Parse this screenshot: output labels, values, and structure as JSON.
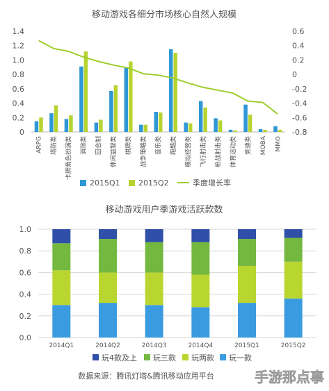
{
  "chart_data": [
    {
      "type": "bar",
      "title": "移动游戏各细分市场核心自然人规模",
      "categories": [
        "ARPG",
        "塔防类",
        "卡牌角色扮演类",
        "消除类",
        "回合制",
        "休闲益智类",
        "棋牌类",
        "战争策略类",
        "音乐类",
        "跑酷类",
        "模拟经营类",
        "飞行射击类",
        "枪战射击类",
        "体育运动类",
        "竞速类",
        "MOBA",
        "MMO"
      ],
      "series": [
        {
          "name": "2015Q1",
          "color": "#2f97d6",
          "axis": "left",
          "values": [
            0.15,
            0.26,
            0.18,
            0.91,
            0.13,
            0.57,
            0.89,
            0.1,
            0.28,
            1.15,
            0.13,
            0.43,
            0.19,
            0.03,
            0.38,
            0.04,
            0.08
          ]
        },
        {
          "name": "2015Q2",
          "color": "#b6d431",
          "axis": "left",
          "values": [
            0.2,
            0.37,
            0.23,
            1.12,
            0.17,
            0.65,
            0.98,
            0.1,
            0.27,
            1.1,
            0.12,
            0.34,
            0.16,
            0.02,
            0.24,
            0.03,
            0.03
          ]
        },
        {
          "name": "季度增长率",
          "color": "#9bcd2a",
          "axis": "right",
          "kind": "line",
          "values": [
            0.47,
            0.36,
            0.32,
            0.24,
            0.18,
            0.13,
            0.09,
            0.01,
            -0.01,
            -0.05,
            -0.12,
            -0.18,
            -0.22,
            -0.26,
            -0.37,
            -0.39,
            -0.55
          ]
        }
      ],
      "ylim": [
        0,
        1.4
      ],
      "yticks": [
        "0",
        "0.2",
        "0.4",
        "0.6",
        "0.8",
        "1.0",
        "1.2",
        "1.4"
      ],
      "y2lim": [
        -0.8,
        0.6
      ],
      "y2ticks": [
        "-0.8",
        "-0.6",
        "-0.4",
        "-0.2",
        "0",
        "0.2",
        "0.4",
        "0.6"
      ],
      "legend_position": "bottom",
      "grid": false
    },
    {
      "type": "bar",
      "stacked": true,
      "title": "移动游戏用户季游戏活跃款数",
      "categories": [
        "2014Q1",
        "2014Q2",
        "2014Q3",
        "2014Q4",
        "2015Q1",
        "2015Q2"
      ],
      "series": [
        {
          "name": "玩一款",
          "color": "#3b9be0",
          "values": [
            0.3,
            0.32,
            0.3,
            0.28,
            0.32,
            0.36
          ]
        },
        {
          "name": "玩两款",
          "color": "#b9d530",
          "values": [
            0.32,
            0.28,
            0.3,
            0.3,
            0.34,
            0.34
          ]
        },
        {
          "name": "玩三款",
          "color": "#74b83f",
          "values": [
            0.25,
            0.31,
            0.28,
            0.3,
            0.25,
            0.22
          ]
        },
        {
          "name": "玩4款及上",
          "color": "#2f4fa8",
          "values": [
            0.13,
            0.09,
            0.12,
            0.12,
            0.09,
            0.08
          ]
        }
      ],
      "ylim": [
        0,
        1.0
      ],
      "yticks": [
        "0.0",
        "0.2",
        "0.4",
        "0.6",
        "0.8",
        "1.0"
      ],
      "legend_order": [
        "玩4款及上",
        "玩三款",
        "玩两款",
        "玩一款"
      ],
      "legend_position": "bottom",
      "grid": true
    }
  ],
  "source_note": "数据来源：腾讯灯塔&腾讯移动应用平台",
  "watermark": "手游那点事"
}
